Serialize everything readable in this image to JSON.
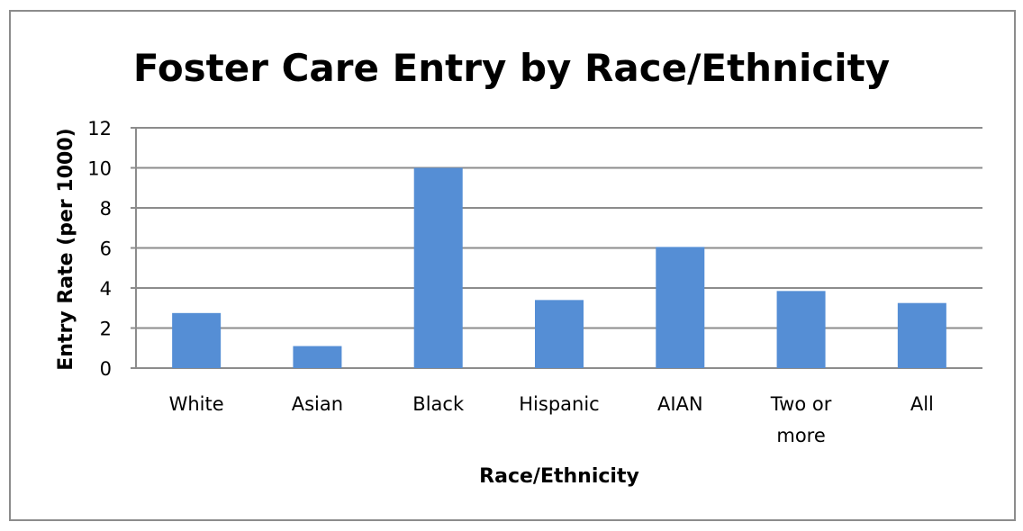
{
  "chart_data": {
    "type": "bar",
    "title": "Foster Care Entry by Race/Ethnicity",
    "xlabel": "Race/Ethnicity",
    "ylabel": "Entry Rate (per 1000)",
    "categories": [
      "White",
      "Asian",
      "Black",
      "Hispanic",
      "AIAN",
      "Two or more",
      "All"
    ],
    "category_lines": [
      [
        "White"
      ],
      [
        "Asian"
      ],
      [
        "Black"
      ],
      [
        "Hispanic"
      ],
      [
        "AIAN"
      ],
      [
        "Two or",
        "more"
      ],
      [
        "All"
      ]
    ],
    "values": [
      2.75,
      1.1,
      10.0,
      3.4,
      6.05,
      3.85,
      3.25
    ],
    "ylim": [
      0,
      12
    ],
    "yticks": [
      "0",
      "2",
      "4",
      "6",
      "8",
      "10",
      "12"
    ],
    "grid": true,
    "legend": "none",
    "colors": {
      "bar": "#558ED5",
      "grid": "#8c8c8c",
      "frame": "#8c8c8c"
    }
  }
}
